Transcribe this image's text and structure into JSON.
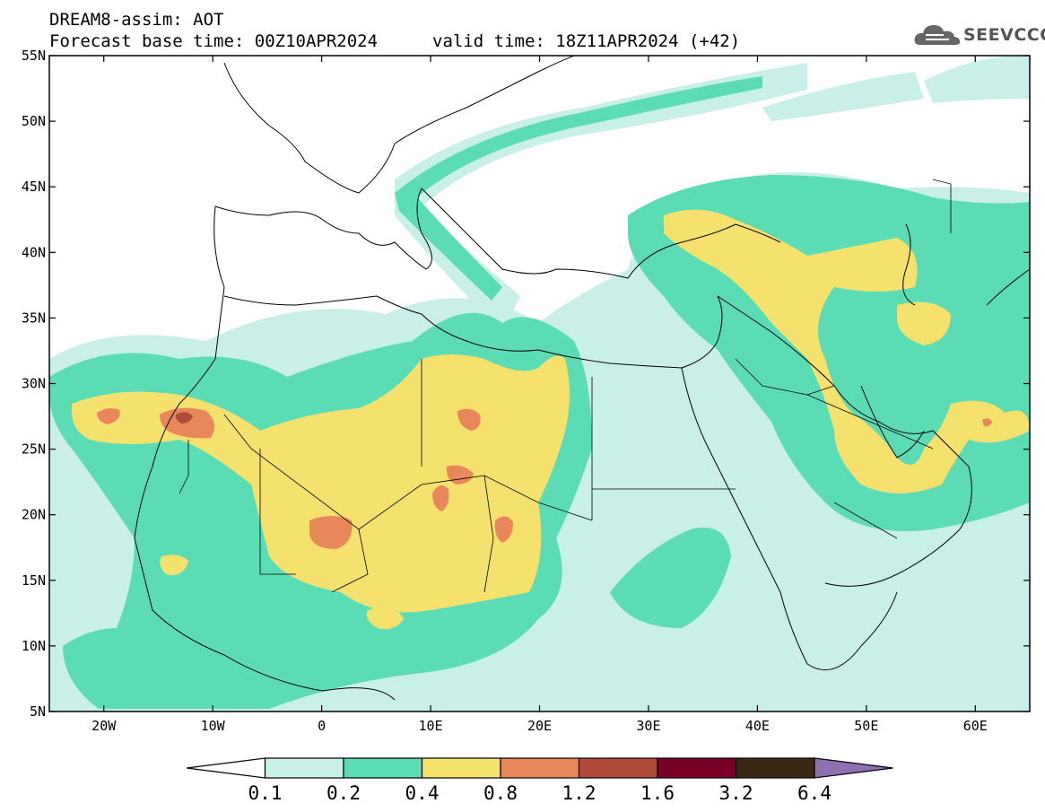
{
  "header": {
    "title": "DREAM8-assim: AOT",
    "base_time": "Forecast base time: 00Z10APR2024",
    "valid_time": "valid time: 18Z11APR2024 (+42)"
  },
  "logo": {
    "text": "SEEVCCC",
    "icon": "cloud-icon"
  },
  "map": {
    "lon_range": [
      -25,
      65
    ],
    "lat_range": [
      5,
      55
    ],
    "lon_ticks": [
      "20W",
      "10W",
      "0",
      "10E",
      "20E",
      "30E",
      "40E",
      "50E",
      "60E"
    ],
    "lat_ticks": [
      "5N",
      "10N",
      "15N",
      "20N",
      "25N",
      "30N",
      "35N",
      "40N",
      "45N",
      "50N",
      "55N"
    ],
    "field": "Aerosol optical thickness (dust)"
  },
  "colorbar": {
    "labels": [
      "0.1",
      "0.2",
      "0.4",
      "0.8",
      "1.2",
      "1.6",
      "3.2",
      "6.4"
    ],
    "colors": [
      "#ffffff",
      "#c8f0e8",
      "#5cdcb4",
      "#f4e16e",
      "#e8875a",
      "#b04a3c",
      "#7a0028",
      "#3c2814",
      "#9070b0"
    ]
  }
}
